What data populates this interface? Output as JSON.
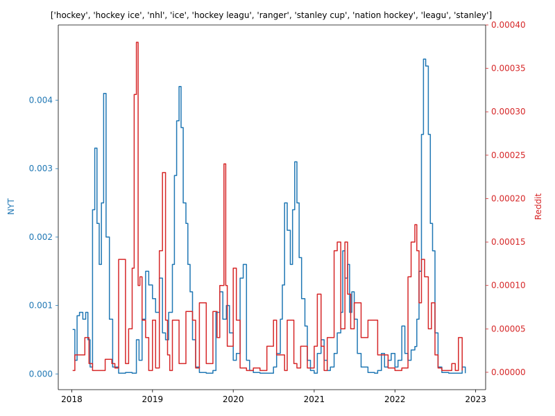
{
  "chart_data": {
    "type": "line",
    "title": "['hockey', 'hockey ice', 'nhl', 'ice', 'hockey leagu', 'ranger', 'stanley cup', 'nation hockey', 'leagu', 'stanley']",
    "xlabel": "",
    "x_axis": {
      "type": "date",
      "range": [
        "2017-11-01",
        "2023-02-15"
      ],
      "ticks": [
        "2018",
        "2019",
        "2020",
        "2021",
        "2022",
        "2023"
      ]
    },
    "y_left": {
      "label": "NYT",
      "color": "#1f77b4",
      "range": [
        -0.00023,
        0.0051
      ],
      "ticks": [
        "0.000",
        "0.001",
        "0.002",
        "0.003",
        "0.004"
      ]
    },
    "y_right": {
      "label": "Reddit",
      "color": "#d62728",
      "range": [
        -2e-05,
        0.0004
      ],
      "ticks": [
        "0.00000",
        "0.00005",
        "0.00010",
        "0.00015",
        "0.00020",
        "0.00025",
        "0.00030",
        "0.00035",
        "0.00040"
      ]
    },
    "grid": false,
    "series": [
      {
        "name": "NYT",
        "axis": "left",
        "color": "#1f77b4",
        "x": [
          "2018-01-05",
          "2018-01-15",
          "2018-01-25",
          "2018-02-05",
          "2018-02-20",
          "2018-03-05",
          "2018-03-15",
          "2018-03-25",
          "2018-04-05",
          "2018-04-15",
          "2018-04-25",
          "2018-05-05",
          "2018-05-15",
          "2018-05-25",
          "2018-06-05",
          "2018-06-20",
          "2018-07-05",
          "2018-08-01",
          "2018-09-01",
          "2018-10-01",
          "2018-10-20",
          "2018-11-01",
          "2018-11-15",
          "2018-12-01",
          "2018-12-15",
          "2019-01-01",
          "2019-01-15",
          "2019-02-01",
          "2019-02-15",
          "2019-03-01",
          "2019-03-15",
          "2019-04-01",
          "2019-04-10",
          "2019-04-20",
          "2019-05-01",
          "2019-05-10",
          "2019-05-20",
          "2019-06-01",
          "2019-06-10",
          "2019-06-20",
          "2019-07-01",
          "2019-07-15",
          "2019-08-01",
          "2019-09-01",
          "2019-10-01",
          "2019-10-15",
          "2019-11-01",
          "2019-11-15",
          "2019-12-01",
          "2019-12-15",
          "2020-01-01",
          "2020-01-15",
          "2020-02-01",
          "2020-02-15",
          "2020-03-01",
          "2020-03-15",
          "2020-04-01",
          "2020-05-01",
          "2020-06-01",
          "2020-07-01",
          "2020-07-15",
          "2020-08-01",
          "2020-08-10",
          "2020-08-20",
          "2020-09-01",
          "2020-09-15",
          "2020-09-25",
          "2020-10-05",
          "2020-10-15",
          "2020-10-25",
          "2020-11-05",
          "2020-11-20",
          "2020-12-01",
          "2020-12-15",
          "2021-01-01",
          "2021-01-15",
          "2021-02-01",
          "2021-02-15",
          "2021-03-01",
          "2021-03-15",
          "2021-04-01",
          "2021-04-15",
          "2021-05-01",
          "2021-05-10",
          "2021-05-20",
          "2021-06-01",
          "2021-06-10",
          "2021-06-20",
          "2021-07-01",
          "2021-07-15",
          "2021-08-01",
          "2021-09-01",
          "2021-10-01",
          "2021-10-15",
          "2021-11-01",
          "2021-11-15",
          "2021-12-01",
          "2021-12-15",
          "2022-01-01",
          "2022-01-15",
          "2022-02-01",
          "2022-02-15",
          "2022-03-01",
          "2022-03-15",
          "2022-04-01",
          "2022-04-10",
          "2022-04-20",
          "2022-05-01",
          "2022-05-10",
          "2022-05-20",
          "2022-06-01",
          "2022-06-10",
          "2022-06-20",
          "2022-07-01",
          "2022-07-15",
          "2022-08-01",
          "2022-09-01",
          "2022-10-01",
          "2022-10-15",
          "2022-11-01",
          "2022-11-15"
        ],
        "values": [
          0.00065,
          0.0002,
          0.00085,
          0.0009,
          0.0008,
          0.0009,
          0.0005,
          0.0001,
          0.0024,
          0.0033,
          0.0022,
          0.0016,
          0.0025,
          0.0041,
          0.002,
          0.0008,
          0.0001,
          1e-05,
          2e-05,
          1e-05,
          0.0005,
          0.0002,
          0.0008,
          0.0015,
          0.0013,
          0.0011,
          0.0009,
          0.0014,
          0.0006,
          0.0005,
          0.0009,
          0.0016,
          0.0029,
          0.0037,
          0.0042,
          0.0036,
          0.0025,
          0.0022,
          0.0016,
          0.0012,
          0.0005,
          0.0001,
          2e-05,
          1e-05,
          5e-05,
          0.0009,
          0.0012,
          0.0008,
          0.001,
          0.0006,
          0.0002,
          0.0003,
          0.0014,
          0.0016,
          0.0002,
          5e-05,
          2e-05,
          1e-05,
          1e-05,
          0.0001,
          0.0003,
          0.0008,
          0.0013,
          0.0025,
          0.0021,
          0.0016,
          0.0024,
          0.0031,
          0.0025,
          0.0017,
          0.0011,
          0.0007,
          0.0002,
          5e-05,
          1e-05,
          0.0003,
          0.0005,
          0.0002,
          5e-05,
          0.0001,
          0.0003,
          0.0006,
          0.0009,
          0.0018,
          0.0014,
          0.0016,
          0.0009,
          0.0012,
          0.0008,
          0.0003,
          0.0001,
          2e-05,
          1e-05,
          5e-05,
          0.0003,
          0.0001,
          0.0002,
          0.0003,
          0.0001,
          0.0002,
          0.0007,
          0.0003,
          0.0002,
          0.00035,
          0.0004,
          0.0008,
          0.0015,
          0.0035,
          0.0046,
          0.0045,
          0.0035,
          0.0022,
          0.0018,
          0.0006,
          0.0001,
          2e-05,
          1e-05,
          1e-05,
          1e-05,
          0.0001,
          1e-05
        ]
      },
      {
        "name": "Reddit",
        "axis": "right",
        "color": "#d62728",
        "x": [
          "2018-01-05",
          "2018-01-15",
          "2018-02-01",
          "2018-03-01",
          "2018-03-20",
          "2018-04-05",
          "2018-05-01",
          "2018-06-01",
          "2018-07-01",
          "2018-07-15",
          "2018-08-01",
          "2018-09-01",
          "2018-09-15",
          "2018-10-01",
          "2018-10-10",
          "2018-10-20",
          "2018-10-28",
          "2018-11-05",
          "2018-11-15",
          "2018-12-01",
          "2018-12-15",
          "2019-01-01",
          "2019-01-15",
          "2019-02-01",
          "2019-02-15",
          "2019-03-01",
          "2019-03-10",
          "2019-03-20",
          "2019-04-01",
          "2019-05-01",
          "2019-06-01",
          "2019-07-01",
          "2019-07-15",
          "2019-08-01",
          "2019-09-01",
          "2019-10-01",
          "2019-10-20",
          "2019-11-01",
          "2019-11-20",
          "2019-11-28",
          "2019-12-05",
          "2019-12-20",
          "2020-01-01",
          "2020-01-15",
          "2020-02-01",
          "2020-03-01",
          "2020-04-01",
          "2020-05-01",
          "2020-06-01",
          "2020-07-01",
          "2020-07-15",
          "2020-08-01",
          "2020-08-20",
          "2020-09-01",
          "2020-10-01",
          "2020-10-15",
          "2020-11-01",
          "2020-12-01",
          "2021-01-01",
          "2021-01-15",
          "2021-02-01",
          "2021-02-15",
          "2021-03-01",
          "2021-04-01",
          "2021-04-15",
          "2021-05-01",
          "2021-05-20",
          "2021-06-01",
          "2021-06-15",
          "2021-07-01",
          "2021-08-01",
          "2021-09-01",
          "2021-10-01",
          "2021-10-15",
          "2021-11-01",
          "2021-12-01",
          "2022-01-01",
          "2022-02-01",
          "2022-03-01",
          "2022-03-15",
          "2022-04-01",
          "2022-04-10",
          "2022-04-20",
          "2022-05-01",
          "2022-05-15",
          "2022-06-01",
          "2022-06-15",
          "2022-07-01",
          "2022-07-15",
          "2022-08-01",
          "2022-09-01",
          "2022-09-15",
          "2022-10-01",
          "2022-10-15",
          "2022-11-01"
        ],
        "values": [
          2e-06,
          2e-05,
          2e-05,
          4e-05,
          1e-05,
          2e-06,
          2e-06,
          1.5e-05,
          1e-05,
          5e-06,
          0.00013,
          1e-05,
          5e-05,
          0.00012,
          0.00032,
          0.00038,
          0.0001,
          0.00011,
          6e-05,
          4e-05,
          2e-06,
          6e-05,
          5e-06,
          0.00014,
          0.00023,
          6e-05,
          2e-05,
          2e-06,
          6e-05,
          1e-05,
          7e-05,
          6e-05,
          5e-06,
          8e-05,
          1e-05,
          7e-05,
          4e-05,
          0.0001,
          0.00024,
          0.0001,
          3e-05,
          3e-05,
          0.00012,
          6e-05,
          5e-06,
          2e-06,
          5e-06,
          2e-06,
          3e-05,
          6e-05,
          2e-05,
          2e-05,
          2e-06,
          6e-05,
          1e-05,
          5e-06,
          3e-05,
          5e-06,
          3e-05,
          9e-05,
          3e-05,
          2e-06,
          4e-05,
          0.00014,
          0.00015,
          5e-05,
          0.00015,
          9e-05,
          5e-05,
          8e-05,
          4e-05,
          6e-05,
          6e-05,
          2e-05,
          2e-05,
          5e-06,
          2e-06,
          5e-06,
          0.00011,
          0.00015,
          0.00017,
          0.00014,
          8e-05,
          0.00013,
          0.00011,
          5e-05,
          8e-05,
          2e-05,
          5e-06,
          2e-06,
          2e-06,
          1e-05,
          2e-06,
          4e-05,
          2e-06
        ]
      }
    ]
  }
}
